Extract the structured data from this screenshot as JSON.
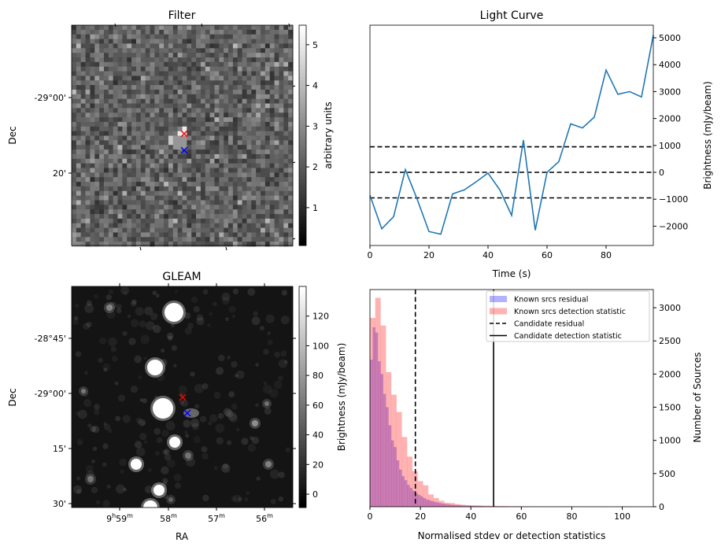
{
  "chart_data": [
    {
      "type": "heatmap",
      "title": "Filter",
      "ylabel": "Dec",
      "yticks": [
        "-29°00'",
        "20'"
      ],
      "colorbar": {
        "label": "arbitrary units",
        "ticks": [
          "1",
          "2",
          "3",
          "4",
          "5"
        ],
        "range": [
          0.07,
          5.48
        ]
      },
      "markers": [
        {
          "name": "red-cross",
          "color": "#ff0000"
        },
        {
          "name": "blue-cross",
          "color": "#0000ff"
        }
      ]
    },
    {
      "type": "line",
      "title": "Light Curve",
      "xlabel": "Time (s)",
      "ylabel": "Brightness (mJy/beam)",
      "xlim": [
        0,
        96
      ],
      "ylim": [
        -2719,
        5468
      ],
      "xticks": [
        "0",
        "20",
        "40",
        "60",
        "80"
      ],
      "yticks": [
        "−2000",
        "−1000",
        "0",
        "1000",
        "2000",
        "3000",
        "4000",
        "5000"
      ],
      "x": [
        0,
        4,
        8,
        12,
        16,
        20,
        24,
        28,
        32,
        36,
        40,
        44,
        48,
        52,
        56,
        60,
        64,
        68,
        72,
        76,
        80,
        84,
        88,
        92,
        96
      ],
      "y": [
        -850,
        -2100,
        -1650,
        100,
        -1000,
        -2200,
        -2300,
        -800,
        -650,
        -350,
        -30,
        -650,
        -1600,
        1200,
        -2150,
        0,
        400,
        1800,
        1650,
        2050,
        3800,
        2900,
        3000,
        2800,
        5100
      ],
      "color": "#1f77b4",
      "hlines": [
        -950,
        0,
        950
      ]
    },
    {
      "type": "heatmap",
      "title": "GLEAM",
      "xlabel": "RA",
      "ylabel": "Dec",
      "xticks": [
        "9h59m",
        "58m",
        "57m",
        "56m"
      ],
      "yticks": [
        "-28°45'",
        "-29°00'",
        "15'",
        "30'"
      ],
      "colorbar": {
        "label": "Brightness (mJy/beam)",
        "ticks": [
          "0",
          "20",
          "40",
          "60",
          "80",
          "100",
          "120"
        ],
        "range": [
          -9,
          140
        ]
      },
      "markers": [
        {
          "name": "red-cross",
          "color": "#ff0000"
        },
        {
          "name": "blue-cross",
          "color": "#0000ff"
        }
      ]
    },
    {
      "type": "bar",
      "xlabel": "Normalised stdev or detection statistics",
      "ylabel": "Number of Sources",
      "xlim": [
        0,
        112.3
      ],
      "ylim": [
        0,
        3274
      ],
      "xticks": [
        "0",
        "20",
        "40",
        "60",
        "80",
        "100"
      ],
      "yticks": [
        "0",
        "500",
        "1000",
        "1500",
        "2000",
        "2500",
        "3000"
      ],
      "legend_position": "upper-right",
      "series": [
        {
          "name": "Known srcs residual",
          "color": "#0000ff",
          "alpha": 0.3,
          "bin_width": 1.05,
          "values": [
            2216,
            2705,
            2626,
            2193,
            2000,
            1700,
            1500,
            1228,
            1000,
            900,
            700,
            560,
            460,
            400,
            330,
            283,
            240,
            205,
            180,
            157,
            130,
            110,
            98,
            85,
            75,
            65,
            55,
            48,
            40,
            35,
            31,
            28,
            25,
            22,
            20,
            18,
            16,
            15,
            14,
            12,
            11,
            10,
            9,
            8,
            8,
            7,
            6,
            6,
            5,
            5,
            5,
            4,
            4,
            4,
            3,
            3,
            3,
            3,
            2,
            2
          ]
        },
        {
          "name": "Known srcs detection statistic",
          "color": "#ff0000",
          "alpha": 0.3,
          "bin_width": 2.1,
          "values": [
            2846,
            3150,
            2732,
            2028,
            1689,
            1429,
            1051,
            756,
            535,
            386,
            323,
            185,
            130,
            90,
            60,
            55,
            40,
            30,
            25,
            20,
            20,
            15,
            15,
            12,
            10,
            10,
            8,
            8,
            6,
            6,
            5,
            5,
            5,
            4,
            4,
            6,
            4,
            3,
            3,
            5,
            3,
            3,
            0,
            4,
            3,
            0,
            3,
            4,
            4,
            3
          ]
        }
      ],
      "vlines": [
        {
          "name": "Candidate residual",
          "x": 18,
          "style": "dashed"
        },
        {
          "name": "Candidate detection statistic",
          "x": 49,
          "style": "solid"
        }
      ]
    }
  ]
}
